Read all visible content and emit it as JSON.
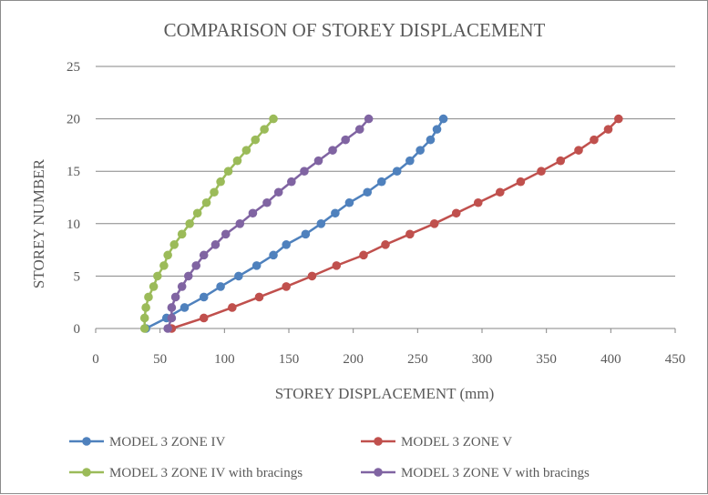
{
  "chart_data": {
    "type": "scatter",
    "title": "COMPARISON OF STOREY DISPLACEMENT",
    "xlabel": "STOREY DISPLACEMENT (mm)",
    "ylabel": "STOREY NUMBER",
    "xlim": [
      0,
      450
    ],
    "ylim": [
      0,
      25
    ],
    "xticks": [
      0,
      50,
      100,
      150,
      200,
      250,
      300,
      350,
      400,
      450
    ],
    "yticks": [
      0,
      5,
      10,
      15,
      20,
      25
    ],
    "x_tick_labels": [
      "0",
      "50",
      "100",
      "150",
      "200",
      "250",
      "300",
      "350",
      "400",
      "450"
    ],
    "y_tick_labels": [
      "0",
      "5",
      "10",
      "15",
      "20",
      "25"
    ],
    "grid": "horizontal",
    "legend_position": "bottom",
    "series": [
      {
        "name": "MODEL 3 ZONE  IV",
        "color": "#4f81bd",
        "x": [
          39,
          55,
          69,
          84,
          97,
          111,
          125,
          138,
          148,
          163,
          175,
          186,
          197,
          211,
          222,
          234,
          244,
          252,
          260,
          265,
          270
        ],
        "y": [
          0,
          1,
          2,
          3,
          4,
          5,
          6,
          7,
          8,
          9,
          10,
          11,
          12,
          13,
          14,
          15,
          16,
          17,
          18,
          19,
          20
        ]
      },
      {
        "name": "MODEL 3 ZONE V",
        "color": "#c0504d",
        "x": [
          59,
          84,
          106,
          127,
          148,
          168,
          187,
          208,
          225,
          244,
          263,
          280,
          297,
          314,
          330,
          346,
          361,
          375,
          387,
          398,
          406
        ],
        "y": [
          0,
          1,
          2,
          3,
          4,
          5,
          6,
          7,
          8,
          9,
          10,
          11,
          12,
          13,
          14,
          15,
          16,
          17,
          18,
          19,
          20
        ]
      },
      {
        "name": "MODEL 3 ZONE  IV with bracings",
        "color": "#9bbb59",
        "x": [
          38,
          38,
          39,
          41,
          45,
          48,
          53,
          56,
          61,
          67,
          73,
          79,
          86,
          92,
          97,
          103,
          110,
          117,
          124,
          131,
          138
        ],
        "y": [
          0,
          1,
          2,
          3,
          4,
          5,
          6,
          7,
          8,
          9,
          10,
          11,
          12,
          13,
          14,
          15,
          16,
          17,
          18,
          19,
          20
        ]
      },
      {
        "name": "MODEL 3 ZONE V with bracings",
        "color": "#8064a2",
        "x": [
          56,
          59,
          59,
          62,
          67,
          72,
          78,
          84,
          93,
          101,
          112,
          122,
          133,
          142,
          152,
          162,
          173,
          184,
          194,
          205,
          212
        ],
        "y": [
          0,
          1,
          2,
          3,
          4,
          5,
          6,
          7,
          8,
          9,
          10,
          11,
          12,
          13,
          14,
          15,
          16,
          17,
          18,
          19,
          20
        ]
      }
    ]
  }
}
